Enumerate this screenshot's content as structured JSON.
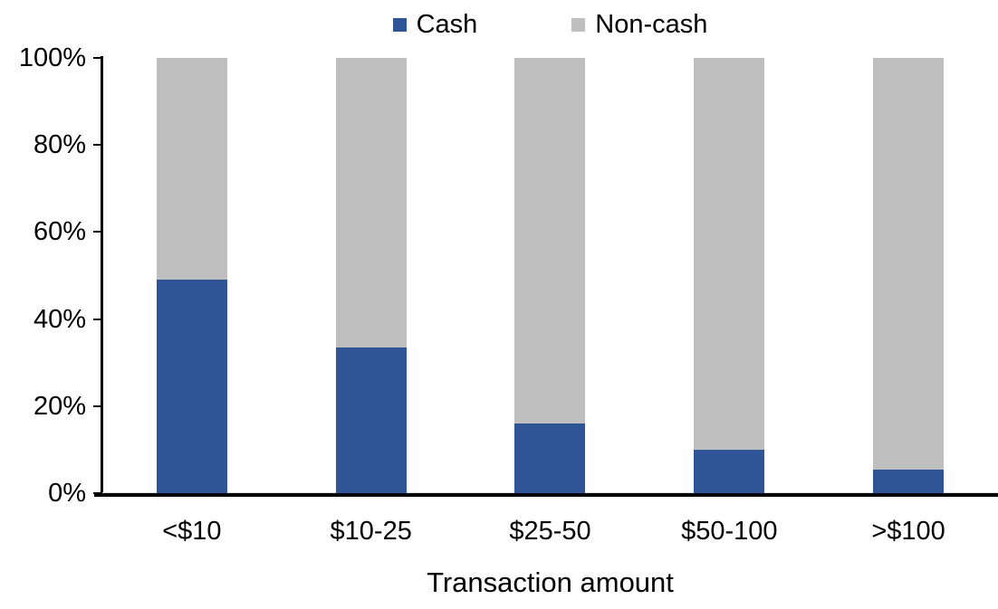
{
  "chart_data": {
    "type": "bar",
    "stacked": true,
    "stacked_total": 100,
    "title": "",
    "xlabel": "Transaction amount",
    "ylabel": "",
    "categories": [
      "<$10",
      "$10-25",
      "$25-50",
      "$50-100",
      ">$100"
    ],
    "series": [
      {
        "name": "Cash",
        "color": "#2F5597",
        "values": [
          49,
          33.5,
          16,
          10,
          5.5
        ]
      },
      {
        "name": "Non-cash",
        "color": "#BFBFBF",
        "values": [
          51,
          66.5,
          84,
          90,
          94.5
        ]
      }
    ],
    "ylim": [
      0,
      100
    ],
    "yticks": [
      "0%",
      "20%",
      "40%",
      "60%",
      "80%",
      "100%"
    ],
    "legend_position": "top",
    "grid": false
  },
  "colors": {
    "axis": "#000000",
    "background": "#FFFFFF",
    "zero_gridline": "#D9D9D9",
    "text": "#000000"
  }
}
